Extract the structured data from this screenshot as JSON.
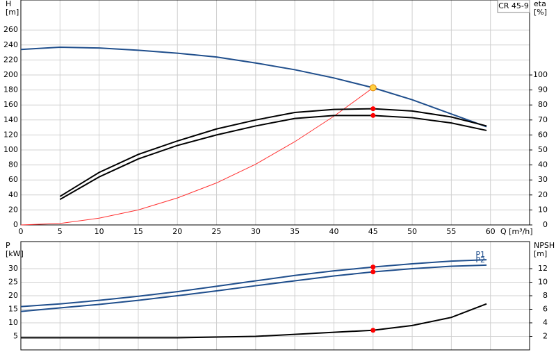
{
  "chart_data": [
    {
      "type": "line",
      "title": "CR 45-9",
      "ylabel": "H",
      "yunit": "[m]",
      "y2label": "eta",
      "y2unit": "[%]",
      "xlabel": "Q [m³/h]",
      "xlim": [
        0,
        65
      ],
      "xticks": [
        0,
        5,
        10,
        15,
        20,
        25,
        30,
        35,
        40,
        45,
        50,
        55,
        60
      ],
      "ylim": [
        0,
        300
      ],
      "yticks": [
        0,
        20,
        40,
        60,
        80,
        100,
        120,
        140,
        160,
        180,
        200,
        220,
        240,
        260
      ],
      "y2lim": [
        0,
        150
      ],
      "y2ticks": [
        0,
        10,
        20,
        30,
        40,
        50,
        60,
        70,
        80,
        90,
        100
      ],
      "grid": true,
      "series": [
        {
          "color": "#1f4e8c",
          "x": [
            0,
            5,
            10,
            15,
            20,
            25,
            30,
            35,
            40,
            45,
            50,
            55,
            59.5
          ],
          "values": [
            234,
            237,
            236,
            233,
            229,
            224,
            216,
            207,
            196,
            183,
            167,
            148,
            131
          ]
        },
        {
          "color": "#ff3030",
          "x": [
            0,
            5,
            10,
            15,
            20,
            25,
            30,
            35,
            40,
            45
          ],
          "values": [
            0,
            2,
            9,
            20,
            36,
            56,
            81,
            111,
            145,
            183
          ]
        },
        {
          "color": "#000000",
          "axis": "y2",
          "x": [
            5,
            10,
            15,
            20,
            25,
            30,
            35,
            40,
            45,
            50,
            55,
            59.5
          ],
          "values": [
            19,
            35,
            47,
            56,
            64,
            70,
            75,
            77,
            77.5,
            76,
            72,
            66
          ]
        },
        {
          "color": "#000000",
          "axis": "y2",
          "x": [
            5,
            10,
            15,
            20,
            25,
            30,
            35,
            40,
            45,
            50,
            55,
            59.5
          ],
          "values": [
            17,
            32,
            44,
            53,
            60,
            66,
            71,
            73,
            73,
            71.5,
            68,
            63
          ]
        }
      ],
      "markers": [
        {
          "x": 45,
          "y": 183,
          "color": "#ffd040"
        },
        {
          "x": 45,
          "y": 77.5,
          "axis": "y2",
          "color": "#ff0000"
        },
        {
          "x": 45,
          "y": 73,
          "axis": "y2",
          "color": "#ff0000"
        }
      ]
    },
    {
      "type": "line",
      "ylabel": "P",
      "yunit": "[kW]",
      "y2label": "NPSH",
      "y2unit": "[m]",
      "xlim": [
        0,
        65
      ],
      "xticks": [
        0,
        5,
        10,
        15,
        20,
        25,
        30,
        35,
        40,
        45,
        50,
        55,
        60
      ],
      "ylim": [
        0,
        40
      ],
      "yticks": [
        5,
        10,
        15,
        20,
        25,
        30
      ],
      "y2lim": [
        0,
        16
      ],
      "y2ticks": [
        2,
        4,
        6,
        8,
        10,
        12
      ],
      "grid": true,
      "series": [
        {
          "name": "P1",
          "color": "#1f4e8c",
          "x": [
            0,
            5,
            10,
            15,
            20,
            25,
            30,
            35,
            40,
            45,
            50,
            55,
            59.5
          ],
          "values": [
            16,
            17,
            18.3,
            19.8,
            21.5,
            23.5,
            25.5,
            27.5,
            29.2,
            30.6,
            31.8,
            32.8,
            33.3
          ]
        },
        {
          "name": "P2",
          "color": "#1f4e8c",
          "x": [
            0,
            5,
            10,
            15,
            20,
            25,
            30,
            35,
            40,
            45,
            50,
            55,
            59.5
          ],
          "values": [
            14.2,
            15.5,
            16.8,
            18.3,
            20,
            21.8,
            23.7,
            25.5,
            27.3,
            28.8,
            30,
            30.9,
            31.3
          ]
        },
        {
          "color": "#000000",
          "axis": "y2",
          "x": [
            0,
            10,
            20,
            25,
            30,
            35,
            40,
            45,
            50,
            55,
            59.5
          ],
          "values": [
            1.8,
            1.8,
            1.8,
            1.9,
            2.0,
            2.3,
            2.6,
            2.9,
            3.6,
            4.8,
            6.8
          ]
        }
      ],
      "markers": [
        {
          "x": 45,
          "y": 30.6,
          "color": "#ff0000"
        },
        {
          "x": 45,
          "y": 28.8,
          "color": "#ff0000"
        },
        {
          "x": 45,
          "y": 2.9,
          "axis": "y2",
          "color": "#ff0000"
        }
      ]
    }
  ]
}
